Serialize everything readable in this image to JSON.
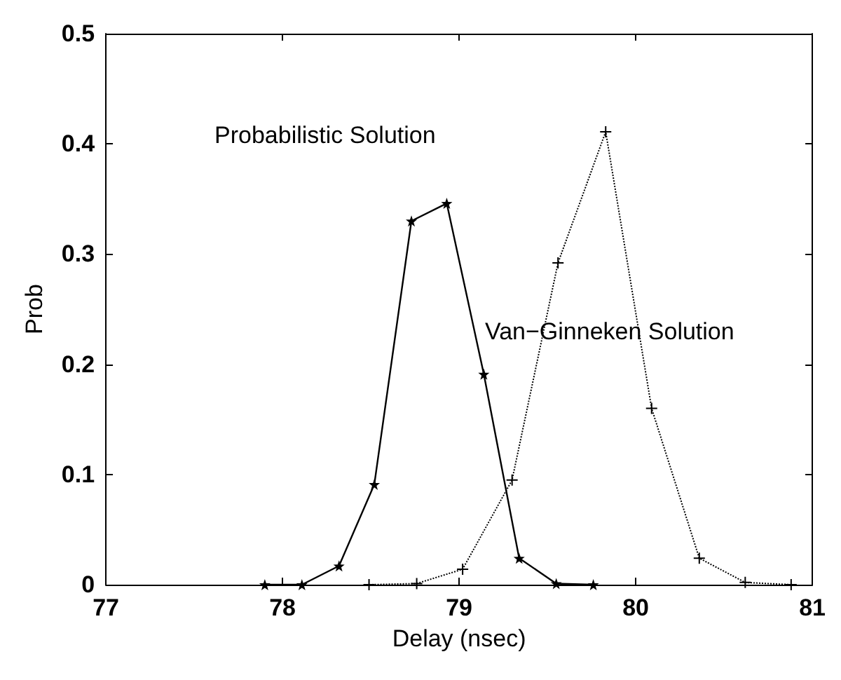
{
  "chart_data": {
    "type": "line",
    "xlabel": "Delay (nsec)",
    "ylabel": "Prob",
    "xlim": [
      77,
      81
    ],
    "xticks": [
      77,
      78,
      79,
      80,
      81
    ],
    "ylim": [
      0,
      0.5
    ],
    "yticks": [
      0,
      0.1,
      0.2,
      0.3,
      0.4,
      0.5
    ],
    "series": [
      {
        "color": "#000000",
        "marker": "star",
        "line_style": "solid",
        "x": [
          77.9,
          78.11,
          78.32,
          78.52,
          78.73,
          78.93,
          79.14,
          79.34,
          79.55,
          79.76
        ],
        "values": [
          0,
          0,
          0.017,
          0.091,
          0.33,
          0.346,
          0.191,
          0.024,
          0.001,
          0
        ]
      },
      {
        "color": "#000000",
        "marker": "cross",
        "line_style": "dotted",
        "x": [
          78.49,
          78.76,
          79.02,
          79.3,
          79.56,
          79.83,
          80.09,
          80.36,
          80.62,
          80.88
        ],
        "values": [
          0,
          0.001,
          0.014,
          0.095,
          0.292,
          0.411,
          0.16,
          0.024,
          0.002,
          0
        ]
      }
    ],
    "annotations": [
      "Probabilistic Solution",
      "Van−Ginneken Solution"
    ],
    "grid": false
  }
}
